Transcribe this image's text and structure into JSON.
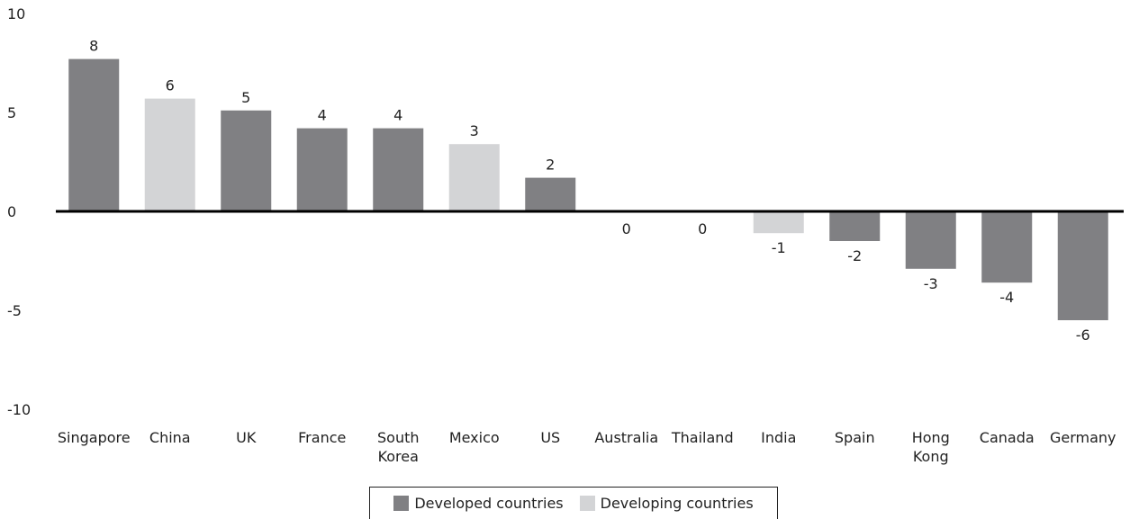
{
  "chart_data": {
    "type": "bar",
    "categories": [
      "Singapore",
      "China",
      "UK",
      "France",
      "South Korea",
      "Mexico",
      "US",
      "Australia",
      "Thailand",
      "India",
      "Spain",
      "Hong Kong",
      "Canada",
      "Germany"
    ],
    "category_lines": [
      [
        "Singapore"
      ],
      [
        "China"
      ],
      [
        "UK"
      ],
      [
        "France"
      ],
      [
        "South",
        "Korea"
      ],
      [
        "Mexico"
      ],
      [
        "US"
      ],
      [
        "Australia"
      ],
      [
        "Thailand"
      ],
      [
        "India"
      ],
      [
        "Spain"
      ],
      [
        "Hong",
        "Kong"
      ],
      [
        "Canada"
      ],
      [
        "Germany"
      ]
    ],
    "values": [
      7.7,
      5.7,
      5.1,
      4.2,
      4.2,
      3.4,
      1.7,
      0,
      0,
      -1.1,
      -1.5,
      -2.9,
      -3.6,
      -5.5
    ],
    "data_labels": [
      "8",
      "6",
      "5",
      "4",
      "4",
      "3",
      "2",
      "0",
      "0",
      "-1",
      "-2",
      "-3",
      "-4",
      "-6"
    ],
    "groups": [
      "Developed countries",
      "Developing countries",
      "Developed countries",
      "Developed countries",
      "Developed countries",
      "Developing countries",
      "Developed countries",
      "Developed countries",
      "Developed countries",
      "Developing countries",
      "Developed countries",
      "Developed countries",
      "Developed countries",
      "Developed countries"
    ],
    "ylim": [
      -10,
      10
    ],
    "yticks": [
      "10",
      "5",
      "0",
      "-5",
      "-10"
    ],
    "title": "",
    "xlabel": "",
    "ylabel": "",
    "grid": false,
    "legend_position": "bottom-center",
    "series": [
      {
        "name": "Developed countries",
        "color": "#808083"
      },
      {
        "name": "Developing countries",
        "color": "#d3d4d6"
      }
    ],
    "axis_color": "#000000"
  },
  "legend": {
    "developed_label": "Developed countries",
    "developing_label": "Developing countries"
  }
}
